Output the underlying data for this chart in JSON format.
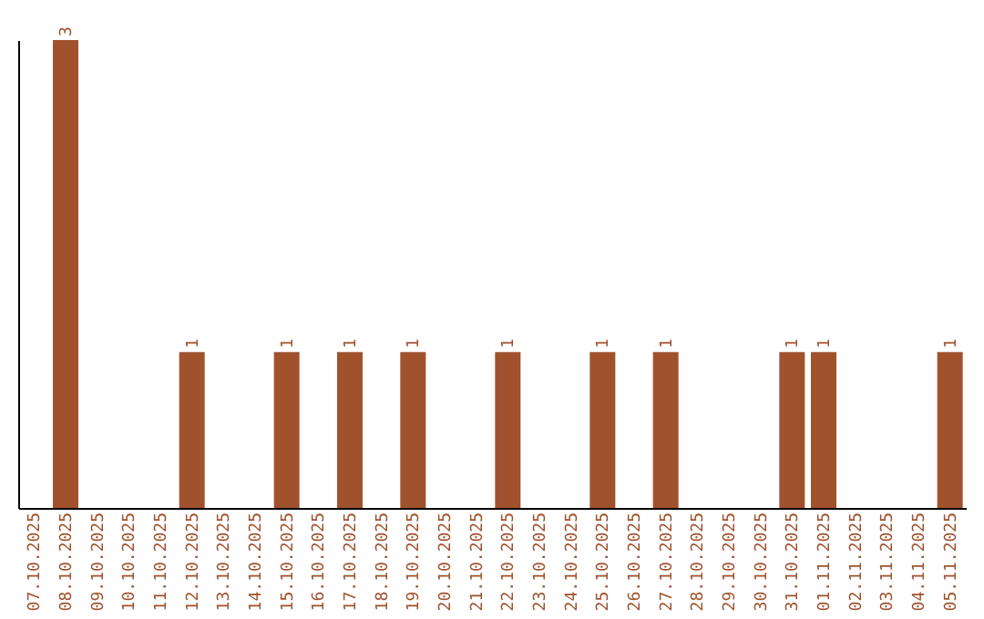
{
  "chart_data": {
    "type": "bar",
    "categories": [
      "07.10.2025",
      "08.10.2025",
      "09.10.2025",
      "10.10.2025",
      "11.10.2025",
      "12.10.2025",
      "13.10.2025",
      "14.10.2025",
      "15.10.2025",
      "16.10.2025",
      "17.10.2025",
      "18.10.2025",
      "19.10.2025",
      "20.10.2025",
      "21.10.2025",
      "22.10.2025",
      "23.10.2025",
      "24.10.2025",
      "25.10.2025",
      "26.10.2025",
      "27.10.2025",
      "28.10.2025",
      "29.10.2025",
      "30.10.2025",
      "31.10.2025",
      "01.11.2025",
      "02.11.2025",
      "03.11.2025",
      "04.11.2025",
      "05.11.2025"
    ],
    "values": [
      0,
      3,
      0,
      0,
      0,
      1,
      0,
      0,
      1,
      0,
      1,
      0,
      1,
      0,
      0,
      1,
      0,
      0,
      1,
      0,
      1,
      0,
      0,
      0,
      1,
      1,
      0,
      0,
      0,
      1
    ],
    "value_labels": [
      null,
      "3",
      null,
      null,
      null,
      "1",
      null,
      null,
      "1",
      null,
      "1",
      null,
      "1",
      null,
      null,
      "1",
      null,
      null,
      "1",
      null,
      "1",
      null,
      null,
      null,
      "1",
      "1",
      null,
      null,
      null,
      "1"
    ],
    "color": "#a0522d",
    "tick_labels": "x"
  }
}
